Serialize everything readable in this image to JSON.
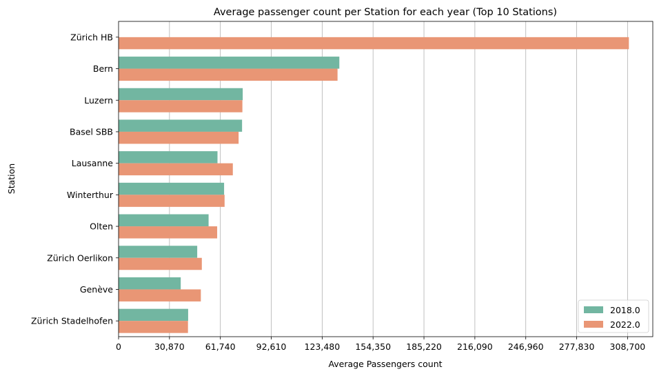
{
  "chart_data": {
    "type": "bar",
    "orientation": "horizontal",
    "title": "Average passenger count per Station for each year (Top 10 Stations)",
    "xlabel": "Average Passengers count",
    "ylabel": "Station",
    "categories": [
      "Zürich HB",
      "Bern",
      "Luzern",
      "Basel SBB",
      "Lausanne",
      "Winterthur",
      "Olten",
      "Zürich Oerlikon",
      "Genève",
      "Zürich Stadelhofen"
    ],
    "series": [
      {
        "name": "2018.0",
        "color": "#72b6a1",
        "values": [
          null,
          133900,
          75300,
          74900,
          60000,
          64000,
          54600,
          47700,
          37700,
          42200
        ]
      },
      {
        "name": "2022.0",
        "color": "#e99675",
        "values": [
          309500,
          132800,
          75100,
          72800,
          69300,
          64300,
          59800,
          50500,
          49900,
          42100
        ]
      }
    ],
    "xlim": [
      0,
      308700
    ],
    "xticks": [
      "0",
      "30,870",
      "61,740",
      "92,610",
      "123,480",
      "154,350",
      "185,220",
      "216,090",
      "246,960",
      "277,830",
      "308,700"
    ],
    "grid": "x",
    "legend_position": "lower right"
  }
}
